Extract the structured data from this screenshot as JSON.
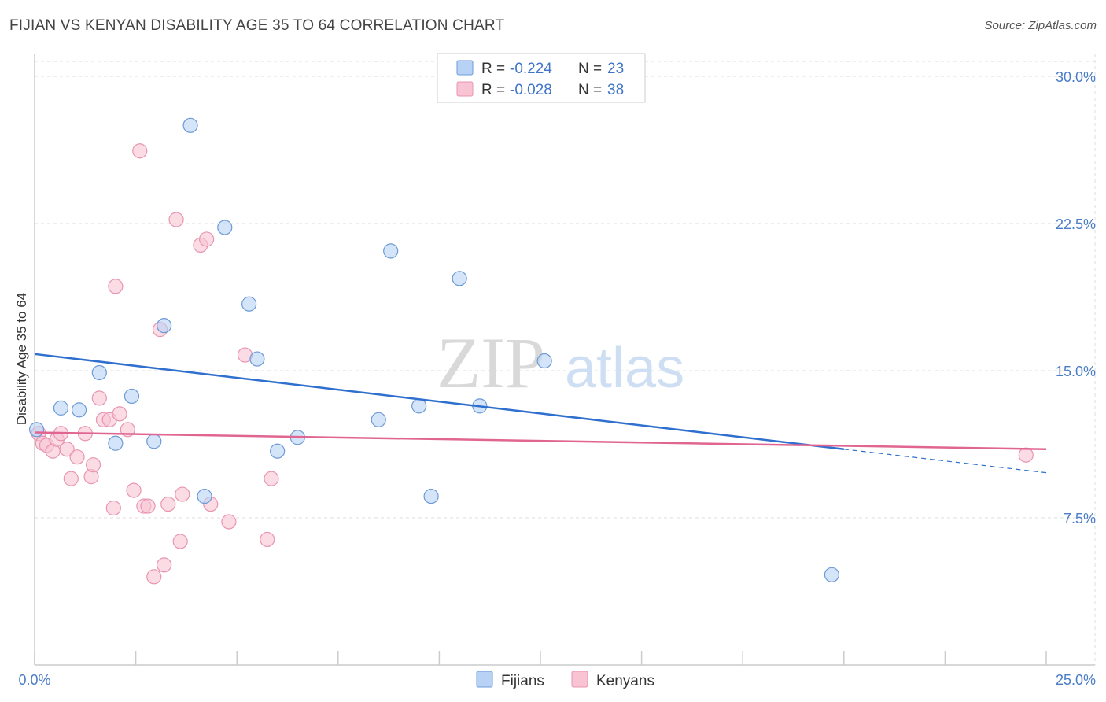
{
  "title": "FIJIAN VS KENYAN DISABILITY AGE 35 TO 64 CORRELATION CHART",
  "source": "Source: ZipAtlas.com",
  "watermark": {
    "part1": "ZIP",
    "part2": "atlas"
  },
  "colors": {
    "fijians_fill": "#b8d2f5",
    "fijians_stroke": "#6c9ad6",
    "fijians_line": "#2f6fce",
    "kenyans_fill": "#f8c4d4",
    "kenyans_stroke": "#e895b0",
    "kenyans_line": "#e06591",
    "grid": "#dddddd",
    "tick_label": "#4a7cc7"
  },
  "chart_data": {
    "type": "scatter",
    "title": "FIJIAN VS KENYAN DISABILITY AGE 35 TO 64 CORRELATION CHART",
    "xlabel": "",
    "ylabel": "Disability Age 35 to 64",
    "xlim": [
      0,
      25
    ],
    "ylim": [
      0,
      31
    ],
    "x_tick_labels": [
      {
        "value": 0,
        "label": "0.0%"
      },
      {
        "value": 25,
        "label": "25.0%"
      }
    ],
    "y_tick_labels": [
      {
        "value": 7.5,
        "label": "7.5%"
      },
      {
        "value": 15.0,
        "label": "15.0%"
      },
      {
        "value": 22.5,
        "label": "22.5%"
      },
      {
        "value": 30.0,
        "label": "30.0%"
      }
    ],
    "grid": true,
    "legend_top": [
      {
        "series": "Fijians",
        "r_label": "R =",
        "r_value": "-0.224",
        "n_label": "N =",
        "n_value": "23"
      },
      {
        "series": "Kenyans",
        "r_label": "R =",
        "r_value": "-0.028",
        "n_label": "N =",
        "n_value": "38"
      }
    ],
    "series": [
      {
        "name": "Fijians",
        "points": [
          [
            0.05,
            12.0
          ],
          [
            0.65,
            13.1
          ],
          [
            1.1,
            13.0
          ],
          [
            1.6,
            14.9
          ],
          [
            2.0,
            11.3
          ],
          [
            2.4,
            13.7
          ],
          [
            2.95,
            11.4
          ],
          [
            3.2,
            17.3
          ],
          [
            3.85,
            27.5
          ],
          [
            4.2,
            8.6
          ],
          [
            4.7,
            22.3
          ],
          [
            5.3,
            18.4
          ],
          [
            5.5,
            15.6
          ],
          [
            6.0,
            10.9
          ],
          [
            6.5,
            11.6
          ],
          [
            8.5,
            12.5
          ],
          [
            8.8,
            21.1
          ],
          [
            9.5,
            13.2
          ],
          [
            9.8,
            8.6
          ],
          [
            10.5,
            19.7
          ],
          [
            11.0,
            13.2
          ],
          [
            12.6,
            15.5
          ],
          [
            19.7,
            4.6
          ]
        ],
        "trend": {
          "x0": 0,
          "y0": 15.85,
          "x1": 20.0,
          "y1": 11.0,
          "dash_to_x": 25,
          "dash_to_y": 9.8
        }
      },
      {
        "name": "Kenyans",
        "points": [
          [
            0.1,
            11.8
          ],
          [
            0.2,
            11.3
          ],
          [
            0.3,
            11.2
          ],
          [
            0.45,
            10.9
          ],
          [
            0.55,
            11.5
          ],
          [
            0.65,
            11.8
          ],
          [
            0.8,
            11.0
          ],
          [
            0.9,
            9.5
          ],
          [
            1.05,
            10.6
          ],
          [
            1.25,
            11.8
          ],
          [
            1.4,
            9.6
          ],
          [
            1.45,
            10.2
          ],
          [
            1.6,
            13.6
          ],
          [
            1.7,
            12.5
          ],
          [
            1.85,
            12.5
          ],
          [
            1.95,
            8.0
          ],
          [
            2.0,
            19.3
          ],
          [
            2.1,
            12.8
          ],
          [
            2.3,
            12.0
          ],
          [
            2.45,
            8.9
          ],
          [
            2.6,
            26.2
          ],
          [
            2.7,
            8.1
          ],
          [
            2.8,
            8.1
          ],
          [
            2.95,
            4.5
          ],
          [
            3.1,
            17.1
          ],
          [
            3.2,
            5.1
          ],
          [
            3.3,
            8.2
          ],
          [
            3.5,
            22.7
          ],
          [
            3.6,
            6.3
          ],
          [
            3.65,
            8.7
          ],
          [
            4.1,
            21.4
          ],
          [
            4.25,
            21.7
          ],
          [
            4.35,
            8.2
          ],
          [
            4.8,
            7.3
          ],
          [
            5.2,
            15.8
          ],
          [
            5.75,
            6.4
          ],
          [
            5.85,
            9.5
          ],
          [
            24.5,
            10.7
          ]
        ],
        "trend": {
          "x0": 0,
          "y0": 11.85,
          "x1": 25,
          "y1": 11.0
        }
      }
    ]
  },
  "bottom_legend": [
    {
      "label": "Fijians"
    },
    {
      "label": "Kenyans"
    }
  ]
}
